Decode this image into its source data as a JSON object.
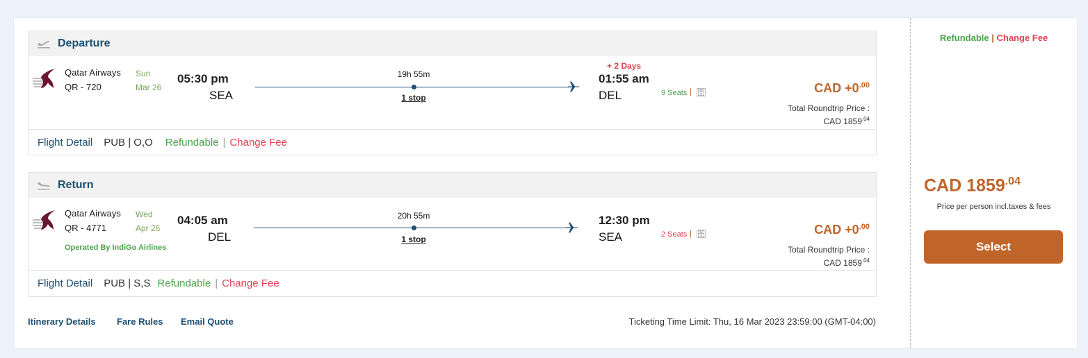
{
  "departure": {
    "title": "Departure",
    "airline": "Qatar Airways",
    "flight": "QR - 720",
    "day": "Sun",
    "date": "Mar 26",
    "dep_time": "05:30 pm",
    "dep_code": "SEA",
    "duration": "19h 55m",
    "stops": "1 stop",
    "day_offset": "+ 2 Days",
    "arr_time": "01:55 am",
    "arr_code": "DEL",
    "seats": "9 Seats",
    "price": "CAD +0",
    "price_dec": ".00",
    "total_label": "Total Roundtrip Price :",
    "total": "CAD 1859",
    "total_dec": ".04",
    "detail": "Flight Detail",
    "fare_class": "PUB | O,O",
    "refundable": "Refundable",
    "sep": "|",
    "change_fee": "Change Fee"
  },
  "ret": {
    "title": "Return",
    "airline": "Qatar Airways",
    "flight": "QR - 4771",
    "day": "Wed",
    "date": "Apr 26",
    "operated": "Operated By IndiGo Airlines",
    "dep_time": "04:05 am",
    "dep_code": "DEL",
    "duration": "20h 55m",
    "stops": "1 stop",
    "arr_time": "12:30 pm",
    "arr_code": "SEA",
    "seats": "2 Seats",
    "price": "CAD +0",
    "price_dec": ".00",
    "total_label": "Total Roundtrip Price :",
    "total": "CAD 1859",
    "total_dec": ".04",
    "detail": "Flight Detail",
    "fare_class": "PUB | S,S",
    "refundable": "Refundable",
    "sep": "|",
    "change_fee": "Change Fee"
  },
  "links": {
    "itinerary": "Itinerary Details",
    "fare_rules": "Fare Rules",
    "email": "Email Quote"
  },
  "ticketing": "Ticketing Time Limit: Thu, 16 Mar 2023 23:59:00 (GMT-04:00)",
  "side": {
    "refundable": "Refundable",
    "sep": "|",
    "change_fee": "Change Fee",
    "price": "CAD 1859",
    "price_dec": ".04",
    "note": "Price per person incl.taxes & fees",
    "select": "Select"
  },
  "colors": {
    "accent": "#c0652a",
    "brand": "#1c4f72",
    "green": "#4aa34a",
    "red": "#e04050",
    "airline_logo": "#6b1535"
  }
}
